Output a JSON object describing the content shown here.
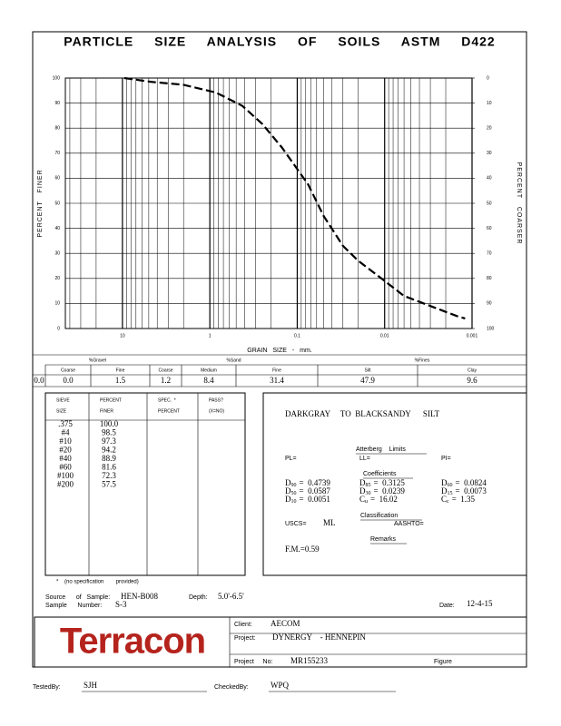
{
  "chart_data": {
    "type": "line",
    "title": "PARTICLE SIZE ANALYSIS OF SOILS ASTM D422",
    "xlabel": "GRAIN SIZE - mm.",
    "ylabel": "PERCENT FINER",
    "y2label": "PERCENT COARSER",
    "log_x": true,
    "grid": true,
    "x": [
      9.5,
      4.75,
      2,
      0.85,
      0.425,
      0.25,
      0.15,
      0.075,
      0.05,
      0.03,
      0.02,
      0.01,
      0.006,
      0.003,
      0.0015,
      0.0012
    ],
    "series": [
      {
        "color": "#000000",
        "values": [
          100,
          98.5,
          97.3,
          94.2,
          88.9,
          81.6,
          72.3,
          57.5,
          45,
          33,
          27,
          19,
          13,
          9,
          5,
          4
        ]
      }
    ],
    "xlim": [
      45,
      0.001
    ],
    "xticks": [
      10,
      1,
      0.1,
      0.01,
      0.001
    ],
    "ylim": [
      0,
      100
    ],
    "yticks": [
      0,
      10,
      20,
      30,
      40,
      50,
      60,
      70,
      80,
      90,
      100
    ],
    "y2lim": [
      100,
      0
    ],
    "y2ticks": [
      0,
      10,
      20,
      30,
      40,
      50,
      60,
      70,
      80,
      90,
      100
    ]
  },
  "fractions": {
    "groups": [
      "%Gravel",
      "%Sand",
      "%Fines"
    ],
    "columns": [
      "Coarse",
      "Fine",
      "Coarse",
      "Medium",
      "Fine",
      "Silt",
      "Clay"
    ],
    "first": "0.0",
    "values": [
      "0.0",
      "1.5",
      "1.2",
      "8.4",
      "31.4",
      "47.9",
      "9.6"
    ]
  },
  "sieve_table": {
    "headers": [
      [
        "SIEVE",
        "SIZE"
      ],
      [
        "PERCENT",
        "FINER"
      ],
      [
        "SPEC.  *",
        "PERCENT"
      ],
      [
        "PASS?",
        "(X=NO)"
      ]
    ],
    "rows": [
      [
        ".375",
        "100.0"
      ],
      [
        "#4",
        "98.5"
      ],
      [
        "#10",
        "97.3"
      ],
      [
        "#20",
        "94.2"
      ],
      [
        "#40",
        "88.9"
      ],
      [
        "#60",
        "81.6"
      ],
      [
        "#100",
        "72.3"
      ],
      [
        "#200",
        "57.5"
      ]
    ]
  },
  "description": "DARKGRAY     TO  BLACKSANDY      SILT",
  "atterberg": {
    "title": "Atterberg    Limits",
    "pl": "PL=",
    "ll": "LL=",
    "pi": "PI="
  },
  "coefficients": {
    "title": "Coefficients",
    "items": [
      {
        "symbol": "D",
        "sub": "90",
        "value": "=  0.4739"
      },
      {
        "symbol": "D",
        "sub": "85",
        "value": "=  0.3125"
      },
      {
        "symbol": "D",
        "sub": "60",
        "value": "=  0.0824"
      },
      {
        "symbol": "D",
        "sub": "50",
        "value": "=  0.0587"
      },
      {
        "symbol": "D",
        "sub": "30",
        "value": "=  0.0239"
      },
      {
        "symbol": "D",
        "sub": "15",
        "value": "=  0.0073"
      },
      {
        "symbol": "D",
        "sub": "10",
        "value": "=  0.0051"
      },
      {
        "symbol": "C",
        "sub": "u",
        "value": "=  16.02"
      },
      {
        "symbol": "C",
        "sub": "c",
        "value": "=  1.35"
      }
    ]
  },
  "classification": {
    "title": "Classification",
    "uscs_label": "USCS=",
    "uscs": "ML",
    "aashto_label": "AASHTO="
  },
  "remarks": {
    "title": "Remarks",
    "text": "F.M.=0.59"
  },
  "footnote": "*    (no specification        provided)",
  "sample": {
    "source_label": "Source      of   Sample:",
    "source": "HEN-B008",
    "number_label": "Sample      Number:",
    "number": "S-3",
    "depth_label": "Depth:",
    "depth": "5.0'-6.5'",
    "date_label": "Date:",
    "date": "12-4-15"
  },
  "footer": {
    "logo": "Terracon",
    "client_label": "Client:",
    "client": "AECOM",
    "project_label": "Project:",
    "project": "DYNERGY    - HENNEPIN",
    "project_no_label": "Project     No:",
    "project_no": "MR155233",
    "figure_label": "Figure"
  },
  "signoff": {
    "tested_label": "TestedBy:",
    "tested": "SJH",
    "checked_label": "CheckedBy:",
    "checked": "WPQ"
  }
}
